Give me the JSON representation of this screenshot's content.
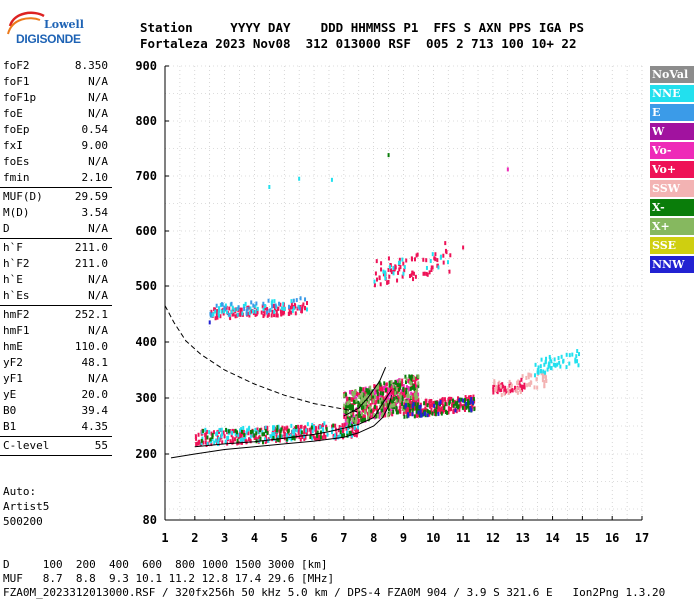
{
  "logo": {
    "line1": "Lowell",
    "line2": "DIGISONDE"
  },
  "header": {
    "line1": "Station     YYYY DAY    DDD HHMMSS P1  FFS S AXN PPS IGA PS",
    "line2": "Fortaleza 2023 Nov08  312 013000 RSF  005 2 713 100 10+ 22"
  },
  "params": [
    {
      "k": "foF2",
      "v": "8.350"
    },
    {
      "k": "foF1",
      "v": "N/A"
    },
    {
      "k": "foF1p",
      "v": "N/A"
    },
    {
      "k": "foE",
      "v": "N/A"
    },
    {
      "k": "foEp",
      "v": "0.54"
    },
    {
      "k": "fxI",
      "v": "9.00"
    },
    {
      "k": "foEs",
      "v": "N/A"
    },
    {
      "k": "fmin",
      "v": "2.10"
    },
    {
      "sep": true
    },
    {
      "k": "MUF(D)",
      "v": "29.59"
    },
    {
      "k": "M(D)",
      "v": "3.54"
    },
    {
      "k": "D",
      "v": "N/A"
    },
    {
      "sep": true
    },
    {
      "k": "h`F",
      "v": "211.0"
    },
    {
      "k": "h`F2",
      "v": "211.0"
    },
    {
      "k": "h`E",
      "v": "N/A"
    },
    {
      "k": "h`Es",
      "v": "N/A"
    },
    {
      "sep": true
    },
    {
      "k": "hmF2",
      "v": "252.1"
    },
    {
      "k": "hmF1",
      "v": "N/A"
    },
    {
      "k": "hmE",
      "v": "110.0"
    },
    {
      "k": "yF2",
      "v": "48.1"
    },
    {
      "k": "yF1",
      "v": "N/A"
    },
    {
      "k": "yE",
      "v": "20.0"
    },
    {
      "k": "B0",
      "v": "39.4"
    },
    {
      "k": "B1",
      "v": "4.35"
    },
    {
      "sep": true
    },
    {
      "k": "C-level",
      "v": "55"
    },
    {
      "sep": true
    }
  ],
  "auto": {
    "line1": "Auto:",
    "line2": "Artist5",
    "line3": "500200"
  },
  "footer": {
    "line1": "D     100  200  400  600  800 1000 1500 3000 [km]",
    "line2": "MUF   8.7  8.8  9.3 10.1 11.2 12.8 17.4 29.6 [MHz]",
    "line3": "FZA0M_2023312013000.RSF / 320fx256h 50 kHz 5.0 km / DPS-4 FZA0M 904 / 3.9 S 321.6 E   Ion2Png 1.3.20"
  },
  "legend": [
    {
      "label": "NoVal",
      "color": "#8c8c8c"
    },
    {
      "label": "NNE",
      "color": "#22e0ee"
    },
    {
      "label": "E",
      "color": "#3b9be8"
    },
    {
      "label": "W",
      "color": "#a1129f"
    },
    {
      "label": "Vo-",
      "color": "#ee2ab8"
    },
    {
      "label": "Vo+",
      "color": "#ee1257"
    },
    {
      "label": "SSW",
      "color": "#f3b3b3"
    },
    {
      "label": "X-",
      "color": "#0a7d0a"
    },
    {
      "label": "X+",
      "color": "#86b85f"
    },
    {
      "label": "SSE",
      "color": "#cfcf10"
    },
    {
      "label": "NNW",
      "color": "#2222d2"
    }
  ],
  "chart_data": {
    "type": "scatter",
    "title": "",
    "xlabel": "",
    "ylabel": "",
    "xlim": [
      1,
      17
    ],
    "ylim": [
      80,
      900
    ],
    "x_ticks": [
      "1",
      "2",
      "3",
      "4",
      "5",
      "6",
      "7",
      "8",
      "9",
      "10",
      "11",
      "12",
      "13",
      "14",
      "15",
      "16",
      "17"
    ],
    "y_ticks": [
      "80",
      "200",
      "300",
      "400",
      "500",
      "600",
      "700",
      "800",
      "900"
    ],
    "y_tick_values": [
      80,
      200,
      300,
      400,
      500,
      600,
      700,
      800,
      900
    ],
    "grid": true,
    "curves": {
      "dashed_muf": [
        [
          1.0,
          465
        ],
        [
          1.3,
          435
        ],
        [
          1.7,
          402
        ],
        [
          2.2,
          378
        ],
        [
          3.0,
          350
        ],
        [
          4.0,
          325
        ],
        [
          5.0,
          305
        ],
        [
          6.0,
          290
        ],
        [
          7.0,
          280
        ],
        [
          7.5,
          275
        ]
      ],
      "solid_profile": [
        [
          1.2,
          193
        ],
        [
          2,
          200
        ],
        [
          3,
          208
        ],
        [
          4,
          213
        ],
        [
          5,
          218
        ],
        [
          6,
          223
        ],
        [
          7,
          230
        ],
        [
          7.5,
          238
        ],
        [
          8.0,
          250
        ],
        [
          8.3,
          265
        ],
        [
          8.5,
          285
        ],
        [
          8.6,
          305
        ]
      ],
      "f_trace": [
        [
          2.0,
          213
        ],
        [
          3,
          218
        ],
        [
          4,
          222
        ],
        [
          5,
          228
        ],
        [
          6,
          235
        ],
        [
          6.5,
          240
        ],
        [
          7,
          246
        ],
        [
          7.5,
          253
        ],
        [
          8,
          265
        ],
        [
          8.3,
          290
        ],
        [
          8.6,
          315
        ]
      ],
      "f_trace_upper": [
        [
          7.0,
          268
        ],
        [
          7.5,
          282
        ],
        [
          7.8,
          300
        ],
        [
          8.0,
          315
        ],
        [
          8.2,
          330
        ],
        [
          8.4,
          355
        ]
      ]
    },
    "clusters": [
      {
        "color": "#ee1257",
        "x": [
          2.0,
          7.5
        ],
        "y": [
          215,
          255
        ],
        "n": 260
      },
      {
        "color": "#22e0ee",
        "x": [
          2.0,
          7.5
        ],
        "y": [
          215,
          258
        ],
        "n": 120
      },
      {
        "color": "#0a7d0a",
        "x": [
          2.0,
          7.5
        ],
        "y": [
          215,
          255
        ],
        "n": 60
      },
      {
        "color": "#ee2ab8",
        "x": [
          7.0,
          9.5
        ],
        "y": [
          250,
          340
        ],
        "n": 220
      },
      {
        "color": "#ee1257",
        "x": [
          7.0,
          9.5
        ],
        "y": [
          250,
          340
        ],
        "n": 220
      },
      {
        "color": "#0a7d0a",
        "x": [
          7.0,
          9.5
        ],
        "y": [
          250,
          345
        ],
        "n": 170
      },
      {
        "color": "#86b85f",
        "x": [
          7.0,
          9.5
        ],
        "y": [
          250,
          340
        ],
        "n": 100
      },
      {
        "color": "#ee1257",
        "x": [
          9.0,
          11.4
        ],
        "y": [
          265,
          305
        ],
        "n": 160
      },
      {
        "color": "#0a7d0a",
        "x": [
          9.0,
          11.4
        ],
        "y": [
          265,
          300
        ],
        "n": 70
      },
      {
        "color": "#2222d2",
        "x": [
          9.0,
          11.4
        ],
        "y": [
          265,
          300
        ],
        "n": 30
      },
      {
        "color": "#ee1257",
        "x": [
          12.0,
          13.1
        ],
        "y": [
          305,
          335
        ],
        "n": 45
      },
      {
        "color": "#f3b3b3",
        "x": [
          12.0,
          13.8
        ],
        "y": [
          300,
          350
        ],
        "n": 55
      },
      {
        "color": "#22e0ee",
        "x": [
          13.4,
          14.9
        ],
        "y": [
          340,
          385
        ],
        "n": 50
      },
      {
        "color": "#ee1257",
        "x": [
          2.5,
          5.8
        ],
        "y": [
          440,
          470
        ],
        "n": 110
      },
      {
        "color": "#22e0ee",
        "x": [
          2.5,
          5.8
        ],
        "y": [
          445,
          478
        ],
        "n": 50
      },
      {
        "color": "#3b9be8",
        "x": [
          2.5,
          5.8
        ],
        "y": [
          445,
          480
        ],
        "n": 30
      },
      {
        "color": "#ee1257",
        "x": [
          8.0,
          10.6
        ],
        "y": [
          500,
          570
        ],
        "n": 70
      },
      {
        "color": "#22e0ee",
        "x": [
          8.0,
          10.6
        ],
        "y": [
          505,
          570
        ],
        "n": 20
      }
    ],
    "isolated_points": [
      {
        "x": 4.5,
        "y": 680,
        "color": "#22e0ee"
      },
      {
        "x": 5.5,
        "y": 695,
        "color": "#22e0ee"
      },
      {
        "x": 6.6,
        "y": 693,
        "color": "#22e0ee"
      },
      {
        "x": 8.5,
        "y": 738,
        "color": "#0a7d0a"
      },
      {
        "x": 12.5,
        "y": 712,
        "color": "#ee2ab8"
      },
      {
        "x": 2.5,
        "y": 435,
        "color": "#2222d2"
      },
      {
        "x": 11.0,
        "y": 570,
        "color": "#ee1257"
      },
      {
        "x": 10.4,
        "y": 578,
        "color": "#ee1257"
      }
    ]
  }
}
